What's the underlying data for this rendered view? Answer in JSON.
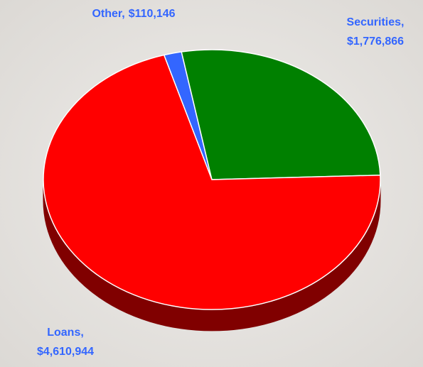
{
  "chart_data": {
    "type": "pie3d",
    "categories": [
      "Other,",
      "Securities,",
      "Loans,"
    ],
    "values": [
      110146,
      1776866,
      4610944
    ],
    "value_labels": [
      "$110,146",
      "$1,776,866",
      "$4,610,944"
    ],
    "colors": [
      "#3366ff",
      "#008000",
      "#ff0000"
    ],
    "side_colors": [
      "#1a3380",
      "#004000",
      "#800000"
    ]
  }
}
